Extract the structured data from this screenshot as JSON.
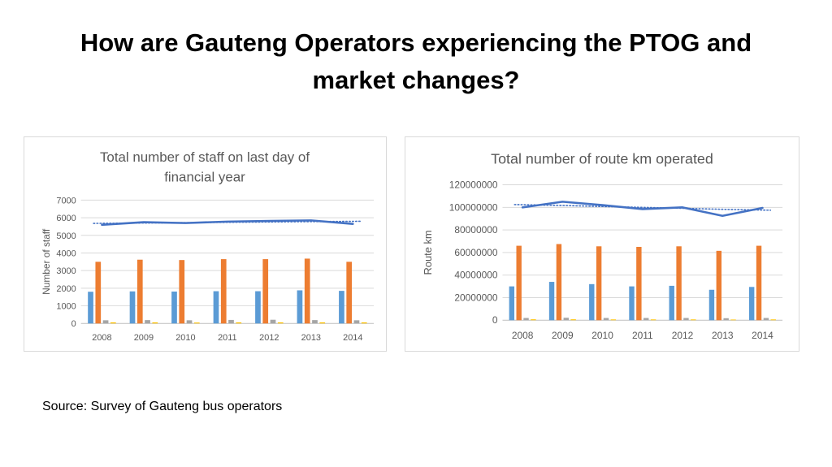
{
  "slide": {
    "title_line1": "How are Gauteng Operators experiencing the PTOG and",
    "title_line2": "market changes?",
    "source": "Source: Survey of Gauteng bus operators"
  },
  "colors": {
    "blue": "#5b9bd5",
    "orange": "#ed7d31",
    "gray": "#a5a5a5",
    "yellow": "#ffc000",
    "line": "#4472c4",
    "grid": "#d9d9d9",
    "title_text": "#595959",
    "tick_text": "#595959"
  },
  "chart_data": [
    {
      "type": "bar",
      "title_lines": [
        "Total number of staff on last day of",
        "financial year"
      ],
      "xlabel": "",
      "ylabel": "Number of staff",
      "categories": [
        "2008",
        "2009",
        "2010",
        "2011",
        "2012",
        "2013",
        "2014"
      ],
      "ylim": [
        0,
        7000
      ],
      "yticks": [
        0,
        1000,
        2000,
        3000,
        4000,
        5000,
        6000,
        7000
      ],
      "ytick_labels": [
        "0",
        "1000",
        "2000",
        "3000",
        "4000",
        "5000",
        "6000",
        "7000"
      ],
      "grid": true,
      "legend": "none",
      "series": [
        {
          "type": "bar",
          "color": "blue",
          "values": [
            1800,
            1820,
            1810,
            1830,
            1830,
            1880,
            1850
          ]
        },
        {
          "type": "bar",
          "color": "orange",
          "values": [
            3500,
            3620,
            3600,
            3650,
            3650,
            3680,
            3500
          ]
        },
        {
          "type": "bar",
          "color": "gray",
          "values": [
            180,
            190,
            180,
            200,
            210,
            190,
            180
          ]
        },
        {
          "type": "bar",
          "color": "yellow",
          "values": [
            60,
            60,
            50,
            60,
            60,
            60,
            60
          ]
        },
        {
          "type": "line",
          "color": "line",
          "values": [
            5600,
            5750,
            5700,
            5780,
            5820,
            5850,
            5650
          ]
        },
        {
          "type": "trendline",
          "color": "line",
          "dotted": true,
          "values": [
            5680,
            5700,
            5720,
            5740,
            5760,
            5780,
            5800
          ]
        }
      ]
    },
    {
      "type": "bar",
      "title_lines": [
        "Total number of route km operated"
      ],
      "xlabel": "",
      "ylabel": "Route km",
      "categories": [
        "2008",
        "2009",
        "2010",
        "2011",
        "2012",
        "2013",
        "2014"
      ],
      "ylim": [
        0,
        120000000
      ],
      "yticks": [
        0,
        20000000,
        40000000,
        60000000,
        80000000,
        100000000,
        120000000
      ],
      "ytick_labels": [
        "0",
        "20000000",
        "40000000",
        "60000000",
        "80000000",
        "100000000",
        "120000000"
      ],
      "grid": true,
      "legend": "none",
      "series": [
        {
          "type": "bar",
          "color": "blue",
          "values": [
            30000000,
            34000000,
            32000000,
            30000000,
            30500000,
            27000000,
            29500000
          ]
        },
        {
          "type": "bar",
          "color": "orange",
          "values": [
            66000000,
            67500000,
            65500000,
            65000000,
            65500000,
            61500000,
            66000000
          ]
        },
        {
          "type": "bar",
          "color": "gray",
          "values": [
            2000000,
            2200000,
            2000000,
            2000000,
            2000000,
            1800000,
            2000000
          ]
        },
        {
          "type": "bar",
          "color": "yellow",
          "values": [
            800000,
            800000,
            700000,
            700000,
            700000,
            600000,
            700000
          ]
        },
        {
          "type": "line",
          "color": "line",
          "values": [
            100000000,
            105000000,
            102000000,
            98500000,
            100000000,
            92500000,
            99500000
          ]
        },
        {
          "type": "trendline",
          "color": "line",
          "dotted": true,
          "values": [
            102500000,
            101700000,
            100800000,
            100000000,
            99200000,
            98300000,
            97500000
          ]
        }
      ]
    }
  ]
}
